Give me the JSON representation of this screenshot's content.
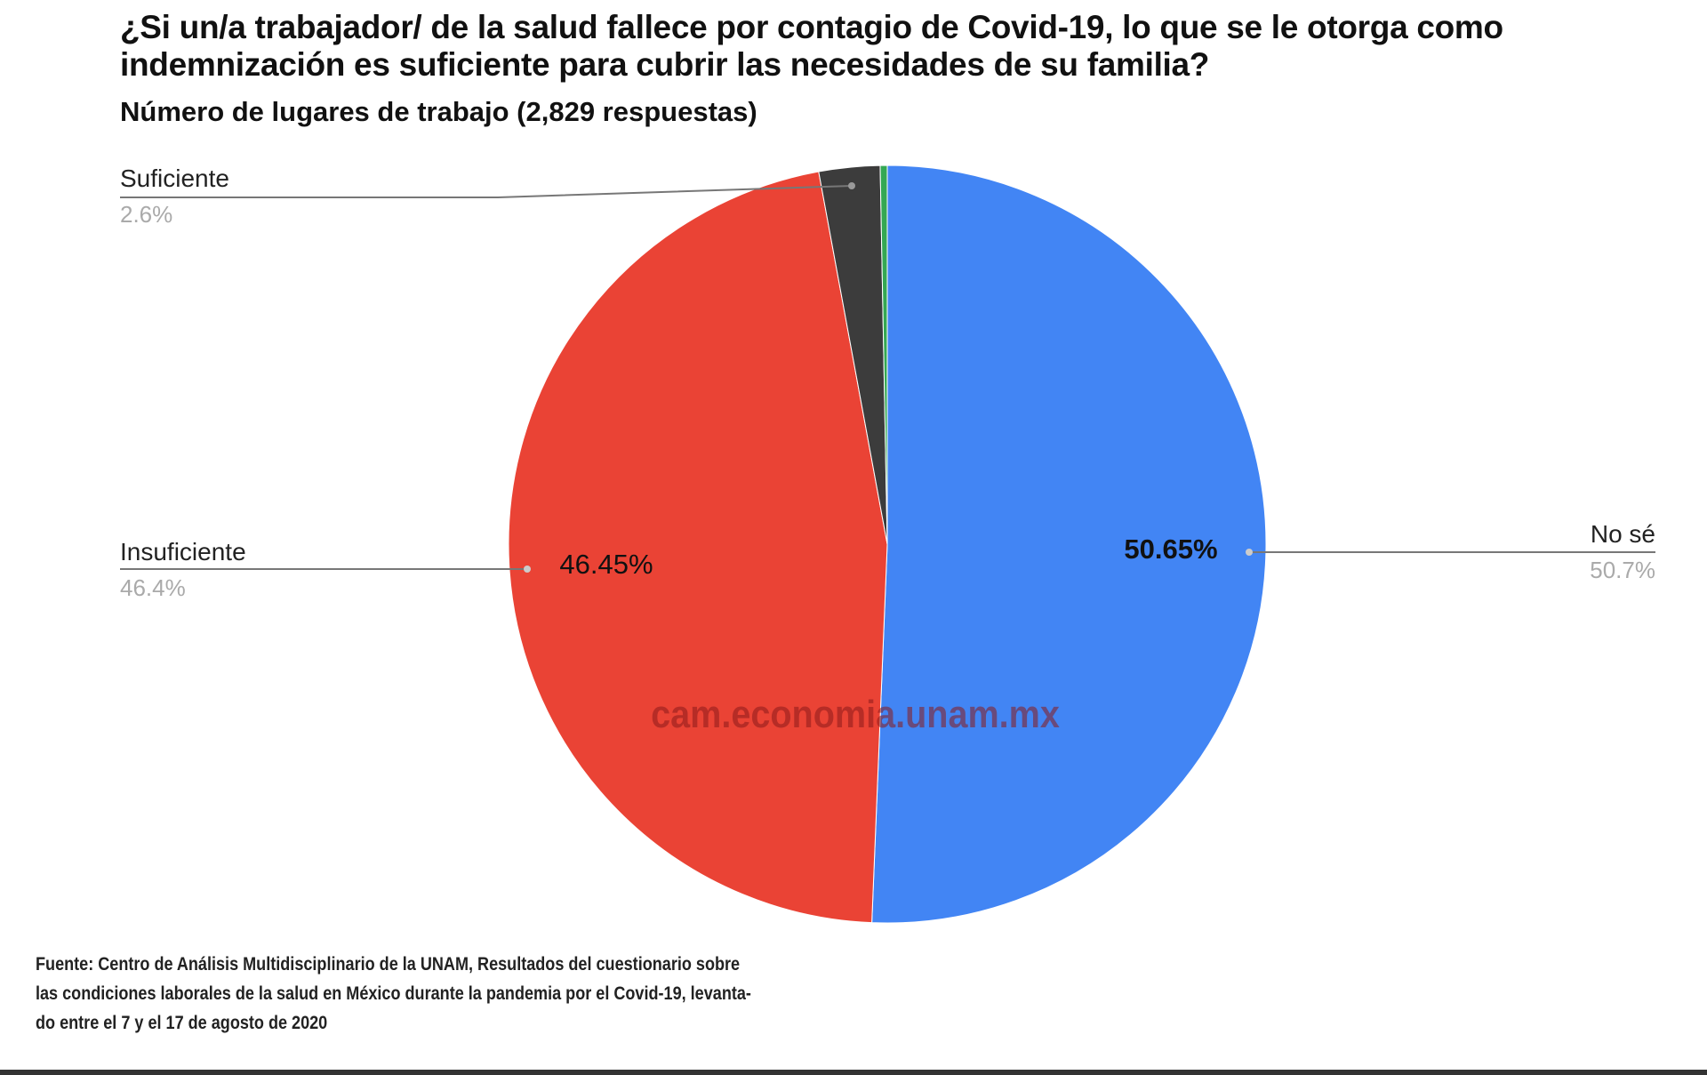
{
  "chart_data": {
    "type": "pie",
    "title": "¿Si un/a trabajador/ de la salud fallece por contagio de Covid-19, lo que se le otorga como indemnización es suficiente para cubrir las necesidades de su familia?",
    "subtitle": "Número de lugares de trabajo (2,829 respuestas)",
    "slices": [
      {
        "name": "No sé",
        "value": 50.65,
        "inner_label": "50.65%",
        "outer_label": "50.7%",
        "color": "#4285f4"
      },
      {
        "name": "Insuficiente",
        "value": 46.45,
        "inner_label": "46.45%",
        "outer_label": "46.4%",
        "color": "#ea4335"
      },
      {
        "name": "Suficiente",
        "value": 2.6,
        "outer_label": "2.6%",
        "color": "#3c3c3c"
      },
      {
        "value": 0.3,
        "color": "#34a853"
      }
    ],
    "start": "top",
    "direction": "clockwise"
  },
  "watermark": "cam.economia.unam.mx",
  "footer": {
    "lines": [
      "Fuente: Centro de Análisis Multidisciplinario de la UNAM, Resultados del cuestionario sobre",
      "las condiciones laborales de la salud en México durante la pandemia por el Covid-19, levanta-",
      "do entre el 7 y el 17 de agosto de 2020"
    ]
  }
}
